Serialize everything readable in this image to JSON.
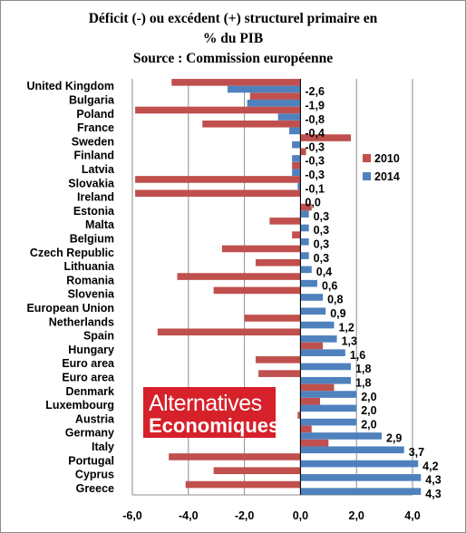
{
  "colors": {
    "series_2010": "#c0504d",
    "series_2014": "#4f81bd",
    "logo_bg": "#d6202a"
  },
  "logo": {
    "line1": "Alternatives",
    "line2": "Economiques"
  },
  "chart_data": {
    "type": "bar",
    "orientation": "horizontal",
    "title_lines": [
      "Déficit (-) ou excédent (+) structurel primaire en",
      "% du PIB",
      "Source : Commission européenne"
    ],
    "xlabel": "",
    "ylabel": "",
    "xlim": [
      -6.0,
      4.0
    ],
    "x_ticks": [
      -6.0,
      -4.0,
      -2.0,
      0.0,
      2.0,
      4.0
    ],
    "x_tick_labels": [
      "-6,0",
      "-4,0",
      "-2,0",
      "0,0",
      "2,0",
      "4,0"
    ],
    "grid": "vertical gridlines on",
    "legend_position": "right",
    "categories": [
      "United Kingdom",
      "Bulgaria",
      "Poland",
      "France",
      "Sweden",
      "Finland",
      "Latvia",
      "Slovakia",
      "Ireland",
      "Estonia",
      "Malta",
      "Belgium",
      "Czech Republic",
      "Lithuania",
      "Romania",
      "Slovenia",
      "European Union",
      "Netherlands",
      "Spain",
      "Hungary",
      "Euro area",
      "Euro area",
      "Denmark",
      "Luxembourg",
      "Austria",
      "Germany",
      "Italy",
      "Portugal",
      "Cyprus",
      "Greece"
    ],
    "series": [
      {
        "name": "2010",
        "values": [
          -4.6,
          -1.8,
          -5.9,
          -3.5,
          1.8,
          0.2,
          -0.3,
          -5.9,
          -5.9,
          0.4,
          -1.1,
          -0.3,
          -2.8,
          -1.6,
          -4.4,
          -3.1,
          0.0,
          -2.0,
          -5.1,
          0.8,
          -1.6,
          -1.5,
          1.2,
          0.7,
          -0.1,
          0.4,
          1.0,
          -4.7,
          -3.1,
          -4.1
        ]
      },
      {
        "name": "2014",
        "values": [
          -2.6,
          -1.9,
          -0.8,
          -0.4,
          -0.3,
          -0.3,
          -0.3,
          -0.1,
          0.0,
          0.3,
          0.3,
          0.3,
          0.3,
          0.4,
          0.6,
          0.8,
          0.9,
          1.2,
          1.3,
          1.6,
          1.8,
          1.8,
          2.0,
          2.0,
          2.0,
          2.9,
          3.7,
          4.2,
          4.3,
          4.3
        ],
        "value_labels": [
          "-2,6",
          "-1,9",
          "-0,8",
          "-0,4",
          "-0,3",
          "-0,3",
          "-0,3",
          "-0,1",
          "0,0",
          "0,3",
          "0,3",
          "0,3",
          "0,3",
          "0,4",
          "0,6",
          "0,8",
          "0,9",
          "1,2",
          "1,3",
          "1,6",
          "1,8",
          "1,8",
          "2,0",
          "2,0",
          "2,0",
          "2,9",
          "3,7",
          "4,2",
          "4,3",
          "4,3"
        ]
      }
    ]
  }
}
